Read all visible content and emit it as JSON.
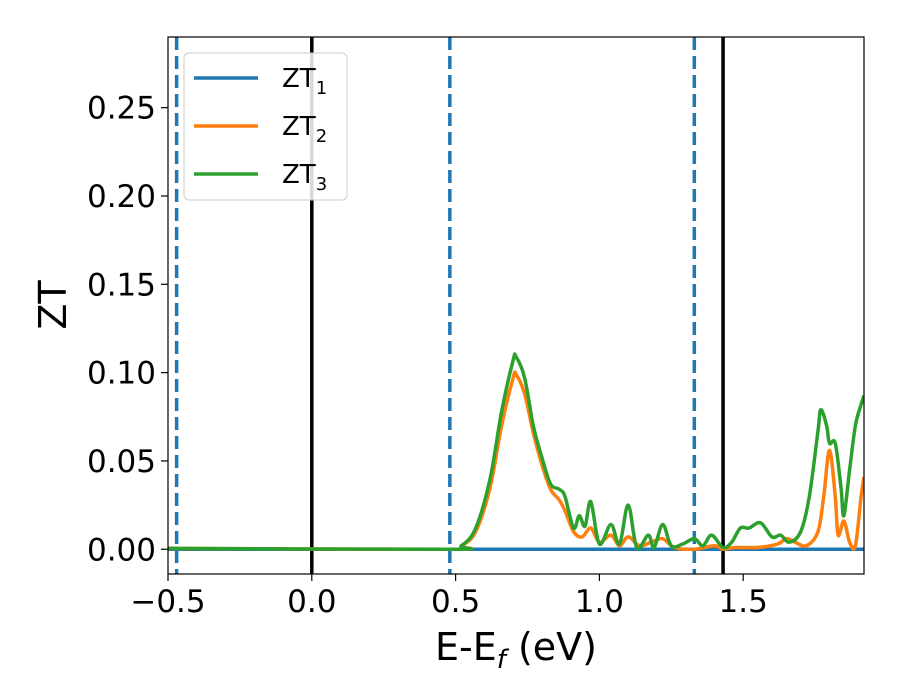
{
  "chart_data": {
    "type": "line",
    "xlabel": {
      "main": "E-E",
      "sub": "f",
      "suffix": " (eV)"
    },
    "ylabel": "ZT",
    "xlim": [
      -0.5,
      1.92
    ],
    "ylim": [
      -0.014,
      0.29
    ],
    "x_ticks": [
      -0.5,
      0.0,
      0.5,
      1.0,
      1.5
    ],
    "x_tick_labels": [
      "−0.5",
      "0.0",
      "0.5",
      "1.0",
      "1.5"
    ],
    "y_ticks": [
      0.0,
      0.05,
      0.1,
      0.15,
      0.2,
      0.25
    ],
    "y_tick_labels": [
      "0.00",
      "0.05",
      "0.10",
      "0.15",
      "0.20",
      "0.25"
    ],
    "grid": false,
    "legend_position": "top-left",
    "vertical_lines": [
      {
        "x": -0.47,
        "style": "dashed",
        "color": "#1f77b4"
      },
      {
        "x": 0.0,
        "style": "solid",
        "color": "#000000"
      },
      {
        "x": 0.48,
        "style": "dashed",
        "color": "#1f77b4"
      },
      {
        "x": 1.33,
        "style": "dashed",
        "color": "#1f77b4"
      },
      {
        "x": 1.43,
        "style": "solid",
        "color": "#000000"
      }
    ],
    "series": [
      {
        "name": "ZT",
        "sub": "1",
        "color": "#1f77b4",
        "points": [
          [
            -0.5,
            0.0
          ],
          [
            1.92,
            0.0
          ]
        ]
      },
      {
        "name": "ZT",
        "sub": "2",
        "color": "#ff7f0e",
        "points": [
          [
            -0.5,
            0.0005
          ],
          [
            0.47,
            0.0
          ],
          [
            0.52,
            0.002
          ],
          [
            0.57,
            0.01
          ],
          [
            0.62,
            0.035
          ],
          [
            0.66,
            0.07
          ],
          [
            0.7,
            0.097
          ],
          [
            0.71,
            0.099
          ],
          [
            0.74,
            0.088
          ],
          [
            0.77,
            0.066
          ],
          [
            0.8,
            0.048
          ],
          [
            0.83,
            0.034
          ],
          [
            0.86,
            0.028
          ],
          [
            0.88,
            0.022
          ],
          [
            0.91,
            0.01
          ],
          [
            0.94,
            0.007
          ],
          [
            0.97,
            0.012
          ],
          [
            1.0,
            0.004
          ],
          [
            1.04,
            0.008
          ],
          [
            1.07,
            0.002
          ],
          [
            1.1,
            0.007
          ],
          [
            1.14,
            0.002
          ],
          [
            1.18,
            0.004
          ],
          [
            1.22,
            0.006
          ],
          [
            1.26,
            0.001
          ],
          [
            1.33,
            0.0
          ],
          [
            1.4,
            0.002
          ],
          [
            1.43,
            0.0
          ],
          [
            1.47,
            0.001
          ],
          [
            1.55,
            0.001
          ],
          [
            1.62,
            0.003
          ],
          [
            1.65,
            0.006
          ],
          [
            1.68,
            0.004
          ],
          [
            1.72,
            0.002
          ],
          [
            1.76,
            0.01
          ],
          [
            1.78,
            0.03
          ],
          [
            1.8,
            0.056
          ],
          [
            1.82,
            0.03
          ],
          [
            1.83,
            0.008
          ],
          [
            1.85,
            0.016
          ],
          [
            1.87,
            0.004
          ],
          [
            1.89,
            0.002
          ],
          [
            1.91,
            0.03
          ],
          [
            1.92,
            0.041
          ]
        ]
      },
      {
        "name": "ZT",
        "sub": "3",
        "color": "#2ca02c",
        "points": [
          [
            -0.5,
            0.0005
          ],
          [
            0.47,
            0.0
          ],
          [
            0.52,
            0.002
          ],
          [
            0.57,
            0.012
          ],
          [
            0.62,
            0.04
          ],
          [
            0.66,
            0.078
          ],
          [
            0.7,
            0.107
          ],
          [
            0.71,
            0.109
          ],
          [
            0.74,
            0.097
          ],
          [
            0.77,
            0.07
          ],
          [
            0.8,
            0.052
          ],
          [
            0.83,
            0.037
          ],
          [
            0.86,
            0.034
          ],
          [
            0.88,
            0.03
          ],
          [
            0.91,
            0.012
          ],
          [
            0.93,
            0.019
          ],
          [
            0.95,
            0.013
          ],
          [
            0.97,
            0.027
          ],
          [
            1.0,
            0.003
          ],
          [
            1.04,
            0.014
          ],
          [
            1.07,
            0.003
          ],
          [
            1.1,
            0.025
          ],
          [
            1.13,
            0.001
          ],
          [
            1.17,
            0.008
          ],
          [
            1.19,
            0.001
          ],
          [
            1.22,
            0.014
          ],
          [
            1.25,
            0.002
          ],
          [
            1.29,
            0.003
          ],
          [
            1.33,
            0.006
          ],
          [
            1.36,
            0.002
          ],
          [
            1.39,
            0.008
          ],
          [
            1.43,
            0.001
          ],
          [
            1.46,
            0.004
          ],
          [
            1.49,
            0.012
          ],
          [
            1.52,
            0.012
          ],
          [
            1.56,
            0.015
          ],
          [
            1.6,
            0.007
          ],
          [
            1.63,
            0.008
          ],
          [
            1.66,
            0.004
          ],
          [
            1.7,
            0.01
          ],
          [
            1.73,
            0.03
          ],
          [
            1.76,
            0.067
          ],
          [
            1.77,
            0.079
          ],
          [
            1.79,
            0.07
          ],
          [
            1.8,
            0.06
          ],
          [
            1.82,
            0.06
          ],
          [
            1.84,
            0.035
          ],
          [
            1.85,
            0.019
          ],
          [
            1.87,
            0.045
          ],
          [
            1.89,
            0.07
          ],
          [
            1.91,
            0.082
          ],
          [
            1.92,
            0.087
          ]
        ]
      }
    ]
  }
}
